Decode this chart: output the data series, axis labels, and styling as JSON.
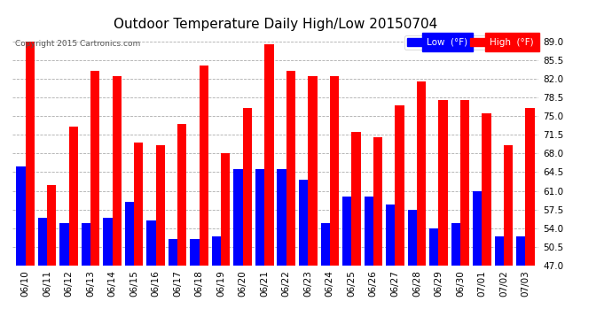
{
  "title": "Outdoor Temperature Daily High/Low 20150704",
  "copyright": "Copyright 2015 Cartronics.com",
  "legend_low": "Low  (°F)",
  "legend_high": "High  (°F)",
  "dates": [
    "06/10",
    "06/11",
    "06/12",
    "06/13",
    "06/14",
    "06/15",
    "06/16",
    "06/17",
    "06/18",
    "06/19",
    "06/20",
    "06/21",
    "06/22",
    "06/23",
    "06/24",
    "06/25",
    "06/26",
    "06/27",
    "06/28",
    "06/29",
    "06/30",
    "07/01",
    "07/02",
    "07/03"
  ],
  "highs": [
    89.0,
    62.0,
    73.0,
    83.5,
    82.5,
    70.0,
    69.5,
    73.5,
    84.5,
    68.0,
    76.5,
    88.5,
    83.5,
    82.5,
    82.5,
    72.0,
    71.0,
    77.0,
    81.5,
    78.0,
    78.0,
    75.5,
    69.5,
    76.5
  ],
  "lows": [
    65.5,
    56.0,
    55.0,
    55.0,
    56.0,
    59.0,
    55.5,
    52.0,
    52.0,
    52.5,
    65.0,
    65.0,
    65.0,
    63.0,
    55.0,
    60.0,
    60.0,
    58.5,
    57.5,
    54.0,
    55.0,
    61.0,
    52.5,
    52.5
  ],
  "ylim_min": 47.0,
  "ylim_max": 90.5,
  "yticks": [
    47.0,
    50.5,
    54.0,
    57.5,
    61.0,
    64.5,
    68.0,
    71.5,
    75.0,
    78.5,
    82.0,
    85.5,
    89.0
  ],
  "bar_color_high": "#ff0000",
  "bar_color_low": "#0000ff",
  "background_color": "#ffffff",
  "grid_color": "#999999",
  "title_fontsize": 11,
  "tick_fontsize": 7.5,
  "bar_width": 0.42,
  "fig_width": 6.9,
  "fig_height": 3.75,
  "dpi": 100
}
